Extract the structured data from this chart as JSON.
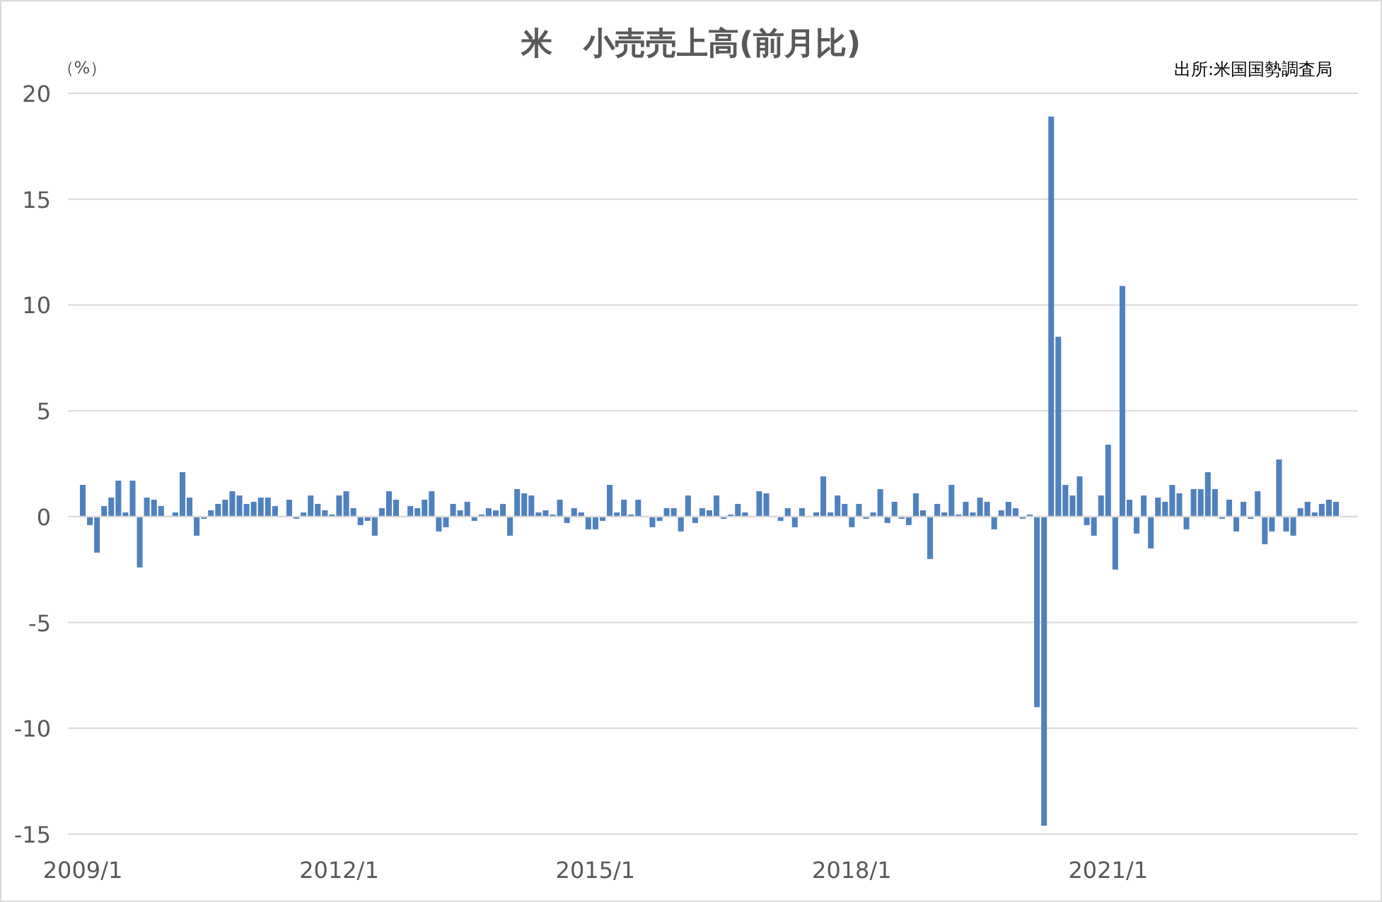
{
  "chart_data": {
    "type": "bar",
    "title": "米　小売売上高(前月比)",
    "ylabel": "（%）",
    "annotations": [
      "出所:米国国勢調査局"
    ],
    "categories": [
      "2009/1",
      null,
      null,
      null,
      null,
      null,
      null,
      null,
      null,
      null,
      null,
      null,
      null,
      null,
      null,
      null,
      null,
      null,
      null,
      null,
      null,
      null,
      null,
      null,
      null,
      null,
      null,
      null,
      null,
      null,
      null,
      null,
      null,
      null,
      null,
      null,
      "2012/1",
      null,
      null,
      null,
      null,
      null,
      null,
      null,
      null,
      null,
      null,
      null,
      null,
      null,
      null,
      null,
      null,
      null,
      null,
      null,
      null,
      null,
      null,
      null,
      null,
      null,
      null,
      null,
      null,
      null,
      null,
      null,
      null,
      null,
      null,
      null,
      "2015/1",
      null,
      null,
      null,
      null,
      null,
      null,
      null,
      null,
      null,
      null,
      null,
      null,
      null,
      null,
      null,
      null,
      null,
      null,
      null,
      null,
      null,
      null,
      null,
      null,
      null,
      null,
      null,
      null,
      null,
      null,
      null,
      null,
      null,
      null,
      null,
      "2018/1",
      null,
      null,
      null,
      null,
      null,
      null,
      null,
      null,
      null,
      null,
      null,
      null,
      null,
      null,
      null,
      null,
      null,
      null,
      null,
      null,
      null,
      null,
      null,
      null,
      null,
      null,
      null,
      null,
      null,
      null,
      null,
      null,
      null,
      null,
      null,
      "2021/1",
      null,
      null,
      null,
      null,
      null,
      null,
      null,
      null,
      null,
      null,
      null,
      null,
      null,
      null,
      null,
      null,
      null,
      null,
      null,
      null,
      null,
      null,
      null,
      null,
      null,
      null,
      null,
      null,
      null,
      null,
      null,
      null
    ],
    "values": [
      1.5,
      -0.4,
      -1.7,
      0.5,
      0.9,
      1.7,
      0.2,
      1.7,
      -2.4,
      0.9,
      0.8,
      0.5,
      0.0,
      0.2,
      2.1,
      0.9,
      -0.9,
      -0.1,
      0.3,
      0.6,
      0.8,
      1.2,
      1.0,
      0.6,
      0.7,
      0.9,
      0.9,
      0.5,
      0.0,
      0.8,
      -0.1,
      0.2,
      1.0,
      0.6,
      0.3,
      0.1,
      1.0,
      1.2,
      0.4,
      -0.4,
      -0.2,
      -0.9,
      0.4,
      1.2,
      0.8,
      0.0,
      0.5,
      0.4,
      0.8,
      1.2,
      -0.7,
      -0.5,
      0.6,
      0.3,
      0.7,
      -0.2,
      0.1,
      0.4,
      0.3,
      0.6,
      -0.9,
      1.3,
      1.1,
      1.0,
      0.2,
      0.3,
      0.1,
      0.8,
      -0.3,
      0.4,
      0.2,
      -0.6,
      -0.6,
      -0.2,
      1.5,
      0.2,
      0.8,
      0.1,
      0.8,
      0.0,
      -0.5,
      -0.2,
      0.4,
      0.4,
      -0.7,
      1.0,
      -0.3,
      0.4,
      0.3,
      1.0,
      -0.1,
      0.1,
      0.6,
      0.2,
      0.0,
      1.2,
      1.1,
      0.0,
      -0.2,
      0.4,
      -0.5,
      0.4,
      0.0,
      0.2,
      1.9,
      0.2,
      1.0,
      0.6,
      -0.5,
      0.6,
      -0.1,
      0.2,
      1.3,
      -0.3,
      0.7,
      -0.1,
      -0.4,
      1.1,
      0.3,
      -2.0,
      0.6,
      0.2,
      1.5,
      0.1,
      0.7,
      0.2,
      0.9,
      0.7,
      -0.6,
      0.3,
      0.7,
      0.4,
      -0.1,
      0.1,
      -9.0,
      -14.6,
      18.9,
      8.5,
      1.5,
      1.0,
      1.9,
      -0.4,
      -0.9,
      1.0,
      3.4,
      -2.5,
      10.9,
      0.8,
      -0.8,
      1.0,
      -1.5,
      0.9,
      0.7,
      1.5,
      1.1,
      -0.6,
      1.3,
      1.3,
      2.1,
      1.3,
      -0.1,
      0.8,
      -0.7,
      0.7,
      -0.1,
      1.2,
      -1.3,
      -0.7,
      2.7,
      -0.7,
      -0.9,
      0.4,
      0.7,
      0.2,
      0.6,
      0.8,
      0.7
    ],
    "color": "#4f81bd",
    "ylim": [
      -15,
      20
    ],
    "yticks": [
      -15,
      -10,
      -5,
      0,
      5,
      10,
      15,
      20
    ],
    "grid": "y"
  }
}
